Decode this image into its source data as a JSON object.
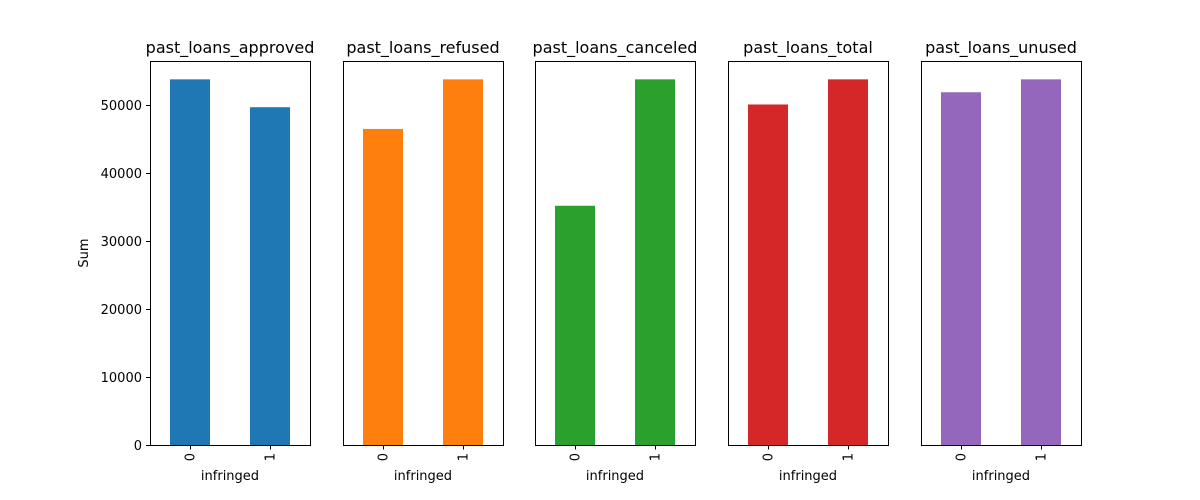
{
  "chart_data": {
    "type": "bar",
    "ylabel": "Sum",
    "ylim": [
      0,
      56500
    ],
    "yticks": [
      0,
      10000,
      20000,
      30000,
      40000,
      50000
    ],
    "shared_y": true,
    "grid": false,
    "panels": [
      {
        "title": "past_loans_approved",
        "xlabel": "infringed",
        "categories": [
          "0",
          "1"
        ],
        "values": [
          53800,
          49700
        ],
        "color": "#1f77b4"
      },
      {
        "title": "past_loans_refused",
        "xlabel": "infringed",
        "categories": [
          "0",
          "1"
        ],
        "values": [
          46500,
          53800
        ],
        "color": "#ff7f0e"
      },
      {
        "title": "past_loans_canceled",
        "xlabel": "infringed",
        "categories": [
          "0",
          "1"
        ],
        "values": [
          35200,
          53800
        ],
        "color": "#2ca02c"
      },
      {
        "title": "past_loans_total",
        "xlabel": "infringed",
        "categories": [
          "0",
          "1"
        ],
        "values": [
          50100,
          53800
        ],
        "color": "#d62728"
      },
      {
        "title": "past_loans_unused",
        "xlabel": "infringed",
        "categories": [
          "0",
          "1"
        ],
        "values": [
          51900,
          53800
        ],
        "color": "#9467bd"
      }
    ]
  }
}
